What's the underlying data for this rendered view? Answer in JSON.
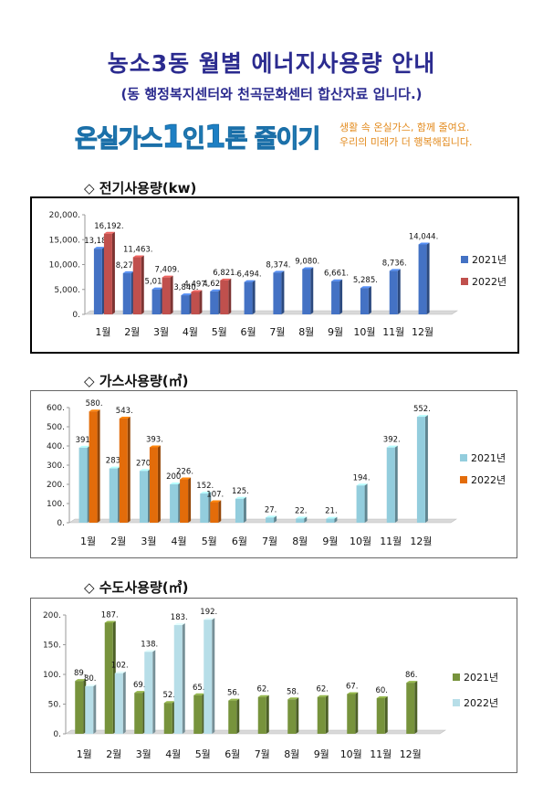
{
  "header": {
    "title": "농소3동 월별 에너지사용량 안내",
    "subtitle": "(동 행정복지센터와 천곡문화센터 합산자료 입니다.)"
  },
  "banner": {
    "main_prefix": "온실가스",
    "num1": "1",
    "mid": "인",
    "num2": "1",
    "main_suffix": "톤 줄이기",
    "side_line1": "생활 속 온실가스, 함께 줄여요.",
    "side_line2": "우리의 미래가 더 행복해집니다."
  },
  "sections": {
    "electric": "◇ 전기사용량(kw)",
    "gas": "◇ 가스사용량(㎥)",
    "water": "◇ 수도사용량(㎥)"
  },
  "chart_data": [
    {
      "type": "bar",
      "title": "◇ 전기사용량(kw)",
      "categories": [
        "1월",
        "2월",
        "3월",
        "4월",
        "5월",
        "6월",
        "7월",
        "8월",
        "9월",
        "10월",
        "11월",
        "12월"
      ],
      "ylim": [
        0,
        20000
      ],
      "yticks": [
        "0.",
        "5,000.",
        "10,000.",
        "15,000.",
        "20,000."
      ],
      "ytick_values": [
        0,
        5000,
        10000,
        15000,
        20000
      ],
      "legend_position": "right",
      "series": [
        {
          "name": "2021년",
          "color": "#4472c4",
          "values": [
            13180,
            8279,
            5017,
            3840,
            4627,
            6494,
            8374,
            9080,
            6661,
            5285,
            8736,
            14044
          ],
          "labels": [
            "13,180.",
            "8,279.",
            "5,017.",
            "3,840.",
            "4,627.",
            "6,494.",
            "8,374.",
            "9,080.",
            "6,661.",
            "5,285.",
            "8,736.",
            "14,044."
          ]
        },
        {
          "name": "2022년",
          "color": "#c0504d",
          "values": [
            16192,
            11463,
            7409,
            4497,
            6821,
            null,
            null,
            null,
            null,
            null,
            null,
            null
          ],
          "labels": [
            "16,192.",
            "11,463.",
            "7,409.",
            "4,497.",
            "6,821.",
            "",
            "",
            "",
            "",
            "",
            "",
            ""
          ]
        }
      ]
    },
    {
      "type": "bar",
      "title": "◇ 가스사용량(㎥)",
      "categories": [
        "1월",
        "2월",
        "3월",
        "4월",
        "5월",
        "6월",
        "7월",
        "8월",
        "9월",
        "10월",
        "11월",
        "12월"
      ],
      "ylim": [
        0,
        600
      ],
      "yticks": [
        "0.",
        "100.",
        "200.",
        "300.",
        "400.",
        "500.",
        "600."
      ],
      "ytick_values": [
        0,
        100,
        200,
        300,
        400,
        500,
        600
      ],
      "legend_position": "right",
      "series": [
        {
          "name": "2021년",
          "color": "#93cddd",
          "values": [
            391,
            283,
            270,
            200,
            152,
            125,
            27,
            22,
            21,
            194,
            392,
            552
          ],
          "labels": [
            "391.",
            "283.",
            "270.",
            "200.",
            "152.",
            "125.",
            "27.",
            "22.",
            "21.",
            "194.",
            "392.",
            "552."
          ]
        },
        {
          "name": "2022년",
          "color": "#e36c0a",
          "values": [
            580,
            543,
            393,
            226,
            107,
            null,
            null,
            null,
            null,
            null,
            null,
            null
          ],
          "labels": [
            "580.",
            "543.",
            "393.",
            "226.",
            "107.",
            "",
            "",
            "",
            "",
            "",
            "",
            ""
          ]
        }
      ]
    },
    {
      "type": "bar",
      "title": "◇ 수도사용량(㎥)",
      "categories": [
        "1월",
        "2월",
        "3월",
        "4월",
        "5월",
        "6월",
        "7월",
        "8월",
        "9월",
        "10월",
        "11월",
        "12월"
      ],
      "ylim": [
        0,
        200
      ],
      "yticks": [
        "0.",
        "50.",
        "100.",
        "150.",
        "200."
      ],
      "ytick_values": [
        0,
        50,
        100,
        150,
        200
      ],
      "legend_position": "right",
      "series": [
        {
          "name": "2021년",
          "color": "#77933c",
          "values": [
            89,
            187,
            69,
            52,
            65,
            56,
            62,
            58,
            62,
            67,
            60,
            86
          ],
          "labels": [
            "89.",
            "187.",
            "69.",
            "52.",
            "65.",
            "56.",
            "62.",
            "58.",
            "62.",
            "67.",
            "60.",
            "86."
          ]
        },
        {
          "name": "2022년",
          "color": "#b7dee8",
          "values": [
            80,
            102,
            138,
            183,
            192,
            null,
            null,
            null,
            null,
            null,
            null,
            null
          ],
          "labels": [
            "80.",
            "102.",
            "138.",
            "183.",
            "192.",
            "",
            "",
            "",
            "",
            "",
            "",
            ""
          ]
        }
      ]
    }
  ]
}
